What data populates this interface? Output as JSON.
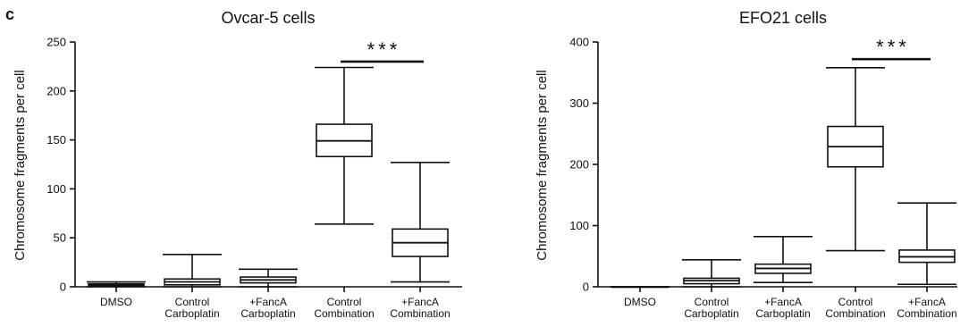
{
  "panel_label": "c",
  "chart_data": [
    {
      "type": "box",
      "title": "Ovcar-5 cells",
      "ylabel": "Chromosome fragments per cell",
      "xlabel": "",
      "ylim": [
        0,
        250
      ],
      "yticks": [
        0,
        50,
        100,
        150,
        200,
        250
      ],
      "categories": [
        [
          "DMSO"
        ],
        [
          "Control",
          "Carboplatin"
        ],
        [
          "+FancA",
          "Carboplatin"
        ],
        [
          "Control",
          "Combination"
        ],
        [
          "+FancA",
          "Combination"
        ]
      ],
      "boxes": [
        {
          "min": 0,
          "q1": 1,
          "median": 2,
          "q3": 3,
          "max": 5
        },
        {
          "min": 0,
          "q1": 2,
          "median": 5,
          "q3": 8,
          "max": 33
        },
        {
          "min": 0,
          "q1": 4,
          "median": 7,
          "q3": 10,
          "max": 18
        },
        {
          "min": 64,
          "q1": 133,
          "median": 149,
          "q3": 166,
          "max": 224
        },
        {
          "min": 5,
          "q1": 31,
          "median": 45,
          "q3": 59,
          "max": 127
        }
      ],
      "significance": {
        "label": "***",
        "from": 3,
        "to": 4,
        "y": 230
      }
    },
    {
      "type": "box",
      "title": "EFO21 cells",
      "ylabel": "Chromosome fragments per cell",
      "xlabel": "",
      "ylim": [
        0,
        400
      ],
      "yticks": [
        0,
        100,
        200,
        300,
        400
      ],
      "categories": [
        [
          "DMSO"
        ],
        [
          "Control",
          "Carboplatin"
        ],
        [
          "+FancA",
          "Carboplatin"
        ],
        [
          "Control",
          "Combination"
        ],
        [
          "+FancA",
          "Combination"
        ]
      ],
      "boxes": [
        {
          "min": 0,
          "q1": 0,
          "median": 0,
          "q3": 0,
          "max": 0
        },
        {
          "min": 0,
          "q1": 5,
          "median": 10,
          "q3": 14,
          "max": 44
        },
        {
          "min": 7,
          "q1": 22,
          "median": 30,
          "q3": 37,
          "max": 82
        },
        {
          "min": 59,
          "q1": 196,
          "median": 229,
          "q3": 262,
          "max": 358
        },
        {
          "min": 4,
          "q1": 40,
          "median": 49,
          "q3": 60,
          "max": 137
        }
      ],
      "significance": {
        "label": "***",
        "from": 3,
        "to": 4,
        "y": 372
      }
    }
  ]
}
